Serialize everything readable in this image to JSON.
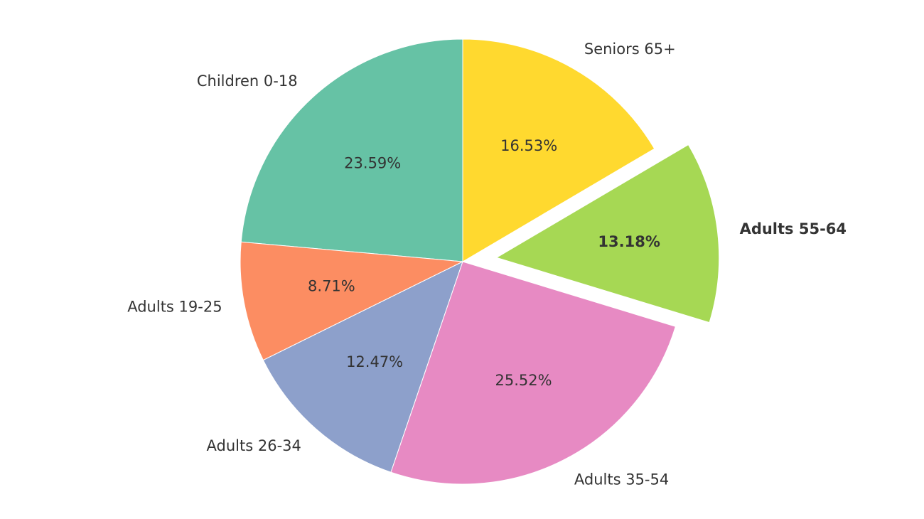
{
  "chart_data": {
    "type": "pie",
    "title": "",
    "start_angle_deg": 90,
    "direction": "counterclockwise",
    "slices": [
      {
        "label": "Children 0-18",
        "value": 23.59,
        "pct_label": "23.59%",
        "color": "#66c2a5",
        "exploded": false,
        "bold": false
      },
      {
        "label": "Adults 19-25",
        "value": 8.71,
        "pct_label": "8.71%",
        "color": "#fc8d62",
        "exploded": false,
        "bold": false
      },
      {
        "label": "Adults 26-34",
        "value": 12.47,
        "pct_label": "12.47%",
        "color": "#8da0cb",
        "exploded": false,
        "bold": false
      },
      {
        "label": "Adults 35-54",
        "value": 25.52,
        "pct_label": "25.52%",
        "color": "#e78ac3",
        "exploded": false,
        "bold": false
      },
      {
        "label": "Adults 55-64",
        "value": 13.18,
        "pct_label": "13.18%",
        "color": "#a6d854",
        "exploded": true,
        "bold": true
      },
      {
        "label": "Seniors 65+",
        "value": 16.53,
        "pct_label": "16.53%",
        "color": "#ffd92f",
        "exploded": false,
        "bold": false
      }
    ]
  }
}
